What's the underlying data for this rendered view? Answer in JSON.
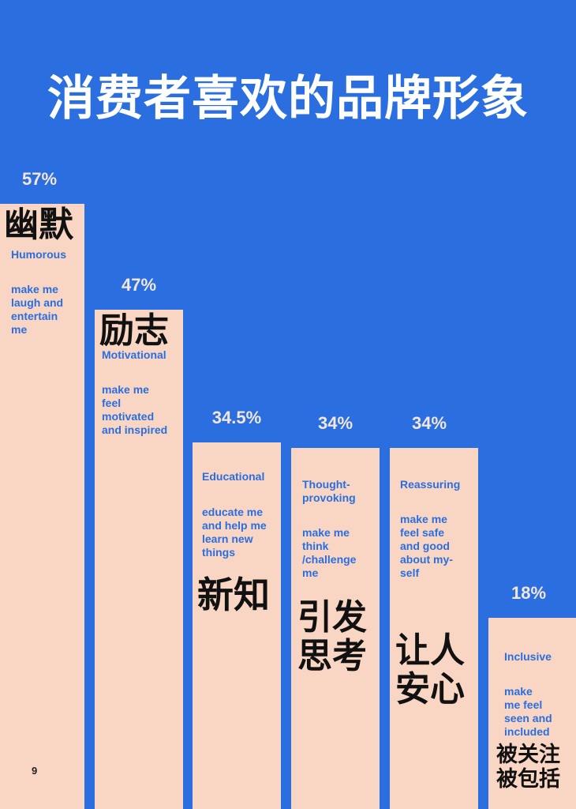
{
  "title": "消费者喜欢的品牌形象",
  "page_number": "9",
  "colors": {
    "background": "#2a6ee0",
    "bar": "#f8d6c3",
    "accent_text": "#2a6ee0",
    "percent_text": "#f3e6dc"
  },
  "chart_data": {
    "type": "bar",
    "title": "消费者喜欢的品牌形象",
    "categories": [
      "Humorous",
      "Motivational",
      "Educational",
      "Thought-provoking",
      "Reassuring",
      "Inclusive"
    ],
    "values": [
      57,
      47,
      34.5,
      34,
      34,
      18
    ],
    "ylim": [
      0,
      57
    ],
    "grid": false,
    "bars": [
      {
        "percent": "57%",
        "zh": "幽默",
        "label": "Humorous",
        "desc": "make me\nlaugh and\nentertain\nme"
      },
      {
        "percent": "47%",
        "zh": "励志",
        "label": "Motivational",
        "desc": "make me\nfeel\nmotivated\nand inspired"
      },
      {
        "percent": "34.5%",
        "zh": "新知",
        "label": "Educational",
        "desc": "educate me\nand help me\nlearn new\nthings"
      },
      {
        "percent": "34%",
        "zh": "引发\n思考",
        "label": "Thought-\nprovoking",
        "desc": "make me\nthink\n/challenge\nme"
      },
      {
        "percent": "34%",
        "zh": "让人\n安心",
        "label": "Reassuring",
        "desc": "make me\nfeel safe\nand good\nabout my-\nself"
      },
      {
        "percent": "18%",
        "zh": "被关注\n被包括",
        "label": "Inclusive",
        "desc": "make\nme feel\nseen and\nincluded"
      }
    ]
  }
}
